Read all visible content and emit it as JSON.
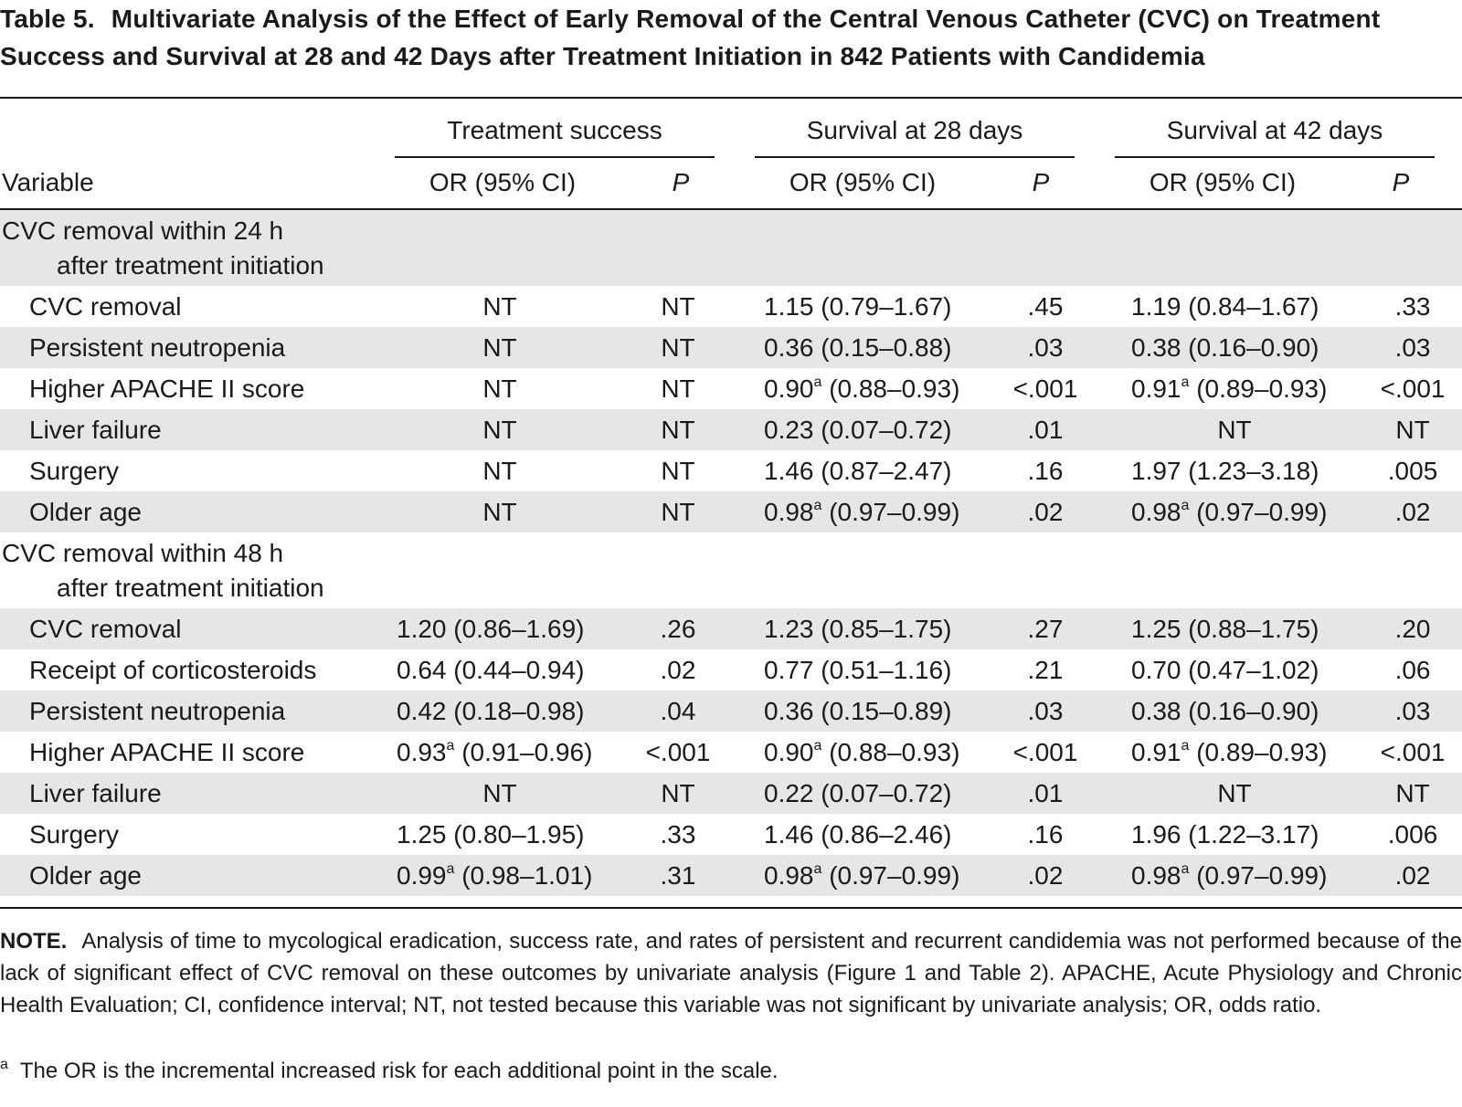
{
  "title": {
    "label": "Table 5.",
    "text": "Multivariate Analysis of the Effect of Early Removal of the Central Venous Catheter (CVC) on Treatment Success and Survival at 28 and 42 Days after Treatment Initiation in 842 Patients with Candidemia"
  },
  "header": {
    "variable": "Variable",
    "groups": [
      "Treatment success",
      "Survival at 28 days",
      "Survival at 42 days"
    ],
    "or_label": "OR (95% CI)",
    "p_label": "P"
  },
  "sections": [
    {
      "line1": "CVC removal within 24 h",
      "line2": "after treatment initiation",
      "rows": [
        {
          "variable": "CVC removal",
          "ts_or": "NT",
          "ts_or_sup": "",
          "ts_ci": "",
          "ts_p": "NT",
          "s28_or": "1.15",
          "s28_or_sup": "",
          "s28_ci": "(0.79–1.67)",
          "s28_p": ".45",
          "s42_or": "1.19",
          "s42_or_sup": "",
          "s42_ci": "(0.84–1.67)",
          "s42_p": ".33"
        },
        {
          "variable": "Persistent neutropenia",
          "ts_or": "NT",
          "ts_or_sup": "",
          "ts_ci": "",
          "ts_p": "NT",
          "s28_or": "0.36",
          "s28_or_sup": "",
          "s28_ci": "(0.15–0.88)",
          "s28_p": ".03",
          "s42_or": "0.38",
          "s42_or_sup": "",
          "s42_ci": "(0.16–0.90)",
          "s42_p": ".03"
        },
        {
          "variable": "Higher APACHE II score",
          "ts_or": "NT",
          "ts_or_sup": "",
          "ts_ci": "",
          "ts_p": "NT",
          "s28_or": "0.90",
          "s28_or_sup": "a",
          "s28_ci": "(0.88–0.93)",
          "s28_p": "<.001",
          "s42_or": "0.91",
          "s42_or_sup": "a",
          "s42_ci": "(0.89–0.93)",
          "s42_p": "<.001"
        },
        {
          "variable": "Liver failure",
          "ts_or": "NT",
          "ts_or_sup": "",
          "ts_ci": "",
          "ts_p": "NT",
          "s28_or": "0.23",
          "s28_or_sup": "",
          "s28_ci": "(0.07–0.72)",
          "s28_p": ".01",
          "s42_or": "NT",
          "s42_or_sup": "",
          "s42_ci": "",
          "s42_p": "NT"
        },
        {
          "variable": "Surgery",
          "ts_or": "NT",
          "ts_or_sup": "",
          "ts_ci": "",
          "ts_p": "NT",
          "s28_or": "1.46",
          "s28_or_sup": "",
          "s28_ci": "(0.87–2.47)",
          "s28_p": ".16",
          "s42_or": "1.97",
          "s42_or_sup": "",
          "s42_ci": "(1.23–3.18)",
          "s42_p": ".005"
        },
        {
          "variable": "Older age",
          "ts_or": "NT",
          "ts_or_sup": "",
          "ts_ci": "",
          "ts_p": "NT",
          "s28_or": "0.98",
          "s28_or_sup": "a",
          "s28_ci": "(0.97–0.99)",
          "s28_p": ".02",
          "s42_or": "0.98",
          "s42_or_sup": "a",
          "s42_ci": "(0.97–0.99)",
          "s42_p": ".02"
        }
      ]
    },
    {
      "line1": "CVC removal within 48 h",
      "line2": "after treatment initiation",
      "rows": [
        {
          "variable": "CVC removal",
          "ts_or": "1.20",
          "ts_or_sup": "",
          "ts_ci": "(0.86–1.69)",
          "ts_p": ".26",
          "s28_or": "1.23",
          "s28_or_sup": "",
          "s28_ci": "(0.85–1.75)",
          "s28_p": ".27",
          "s42_or": "1.25",
          "s42_or_sup": "",
          "s42_ci": "(0.88–1.75)",
          "s42_p": ".20"
        },
        {
          "variable": "Receipt of corticosteroids",
          "ts_or": "0.64",
          "ts_or_sup": "",
          "ts_ci": "(0.44–0.94)",
          "ts_p": ".02",
          "s28_or": "0.77",
          "s28_or_sup": "",
          "s28_ci": "(0.51–1.16)",
          "s28_p": ".21",
          "s42_or": "0.70",
          "s42_or_sup": "",
          "s42_ci": "(0.47–1.02)",
          "s42_p": ".06"
        },
        {
          "variable": "Persistent neutropenia",
          "ts_or": "0.42",
          "ts_or_sup": "",
          "ts_ci": "(0.18–0.98)",
          "ts_p": ".04",
          "s28_or": "0.36",
          "s28_or_sup": "",
          "s28_ci": "(0.15–0.89)",
          "s28_p": ".03",
          "s42_or": "0.38",
          "s42_or_sup": "",
          "s42_ci": "(0.16–0.90)",
          "s42_p": ".03"
        },
        {
          "variable": "Higher APACHE II score",
          "ts_or": "0.93",
          "ts_or_sup": "a",
          "ts_ci": "(0.91–0.96)",
          "ts_p": "<.001",
          "s28_or": "0.90",
          "s28_or_sup": "a",
          "s28_ci": "(0.88–0.93)",
          "s28_p": "<.001",
          "s42_or": "0.91",
          "s42_or_sup": "a",
          "s42_ci": "(0.89–0.93)",
          "s42_p": "<.001"
        },
        {
          "variable": "Liver failure",
          "ts_or": "NT",
          "ts_or_sup": "",
          "ts_ci": "",
          "ts_p": "NT",
          "s28_or": "0.22",
          "s28_or_sup": "",
          "s28_ci": "(0.07–0.72)",
          "s28_p": ".01",
          "s42_or": "NT",
          "s42_or_sup": "",
          "s42_ci": "",
          "s42_p": "NT"
        },
        {
          "variable": "Surgery",
          "ts_or": "1.25",
          "ts_or_sup": "",
          "ts_ci": "(0.80–1.95)",
          "ts_p": ".33",
          "s28_or": "1.46",
          "s28_or_sup": "",
          "s28_ci": "(0.86–2.46)",
          "s28_p": ".16",
          "s42_or": "1.96",
          "s42_or_sup": "",
          "s42_ci": "(1.22–3.17)",
          "s42_p": ".006"
        },
        {
          "variable": "Older age",
          "ts_or": "0.99",
          "ts_or_sup": "a",
          "ts_ci": "(0.98–1.01)",
          "ts_p": ".31",
          "s28_or": "0.98",
          "s28_or_sup": "a",
          "s28_ci": "(0.97–0.99)",
          "s28_p": ".02",
          "s42_or": "0.98",
          "s42_or_sup": "a",
          "s42_ci": "(0.97–0.99)",
          "s42_p": ".02"
        }
      ]
    }
  ],
  "note": {
    "label": "NOTE.",
    "text": "Analysis of time to mycological eradication, success rate, and rates of persistent and recurrent candidemia was not performed because of the lack of significant effect of CVC removal on these outcomes by univariate analysis (Figure 1 and Table 2). APACHE, Acute Physiology and Chronic Health Evaluation; CI, confidence interval; NT, not tested because this variable was not significant by univariate analysis; OR, odds ratio."
  },
  "footnote": {
    "marker": "a",
    "text": "The OR is the incremental increased risk for each additional point in the scale."
  }
}
